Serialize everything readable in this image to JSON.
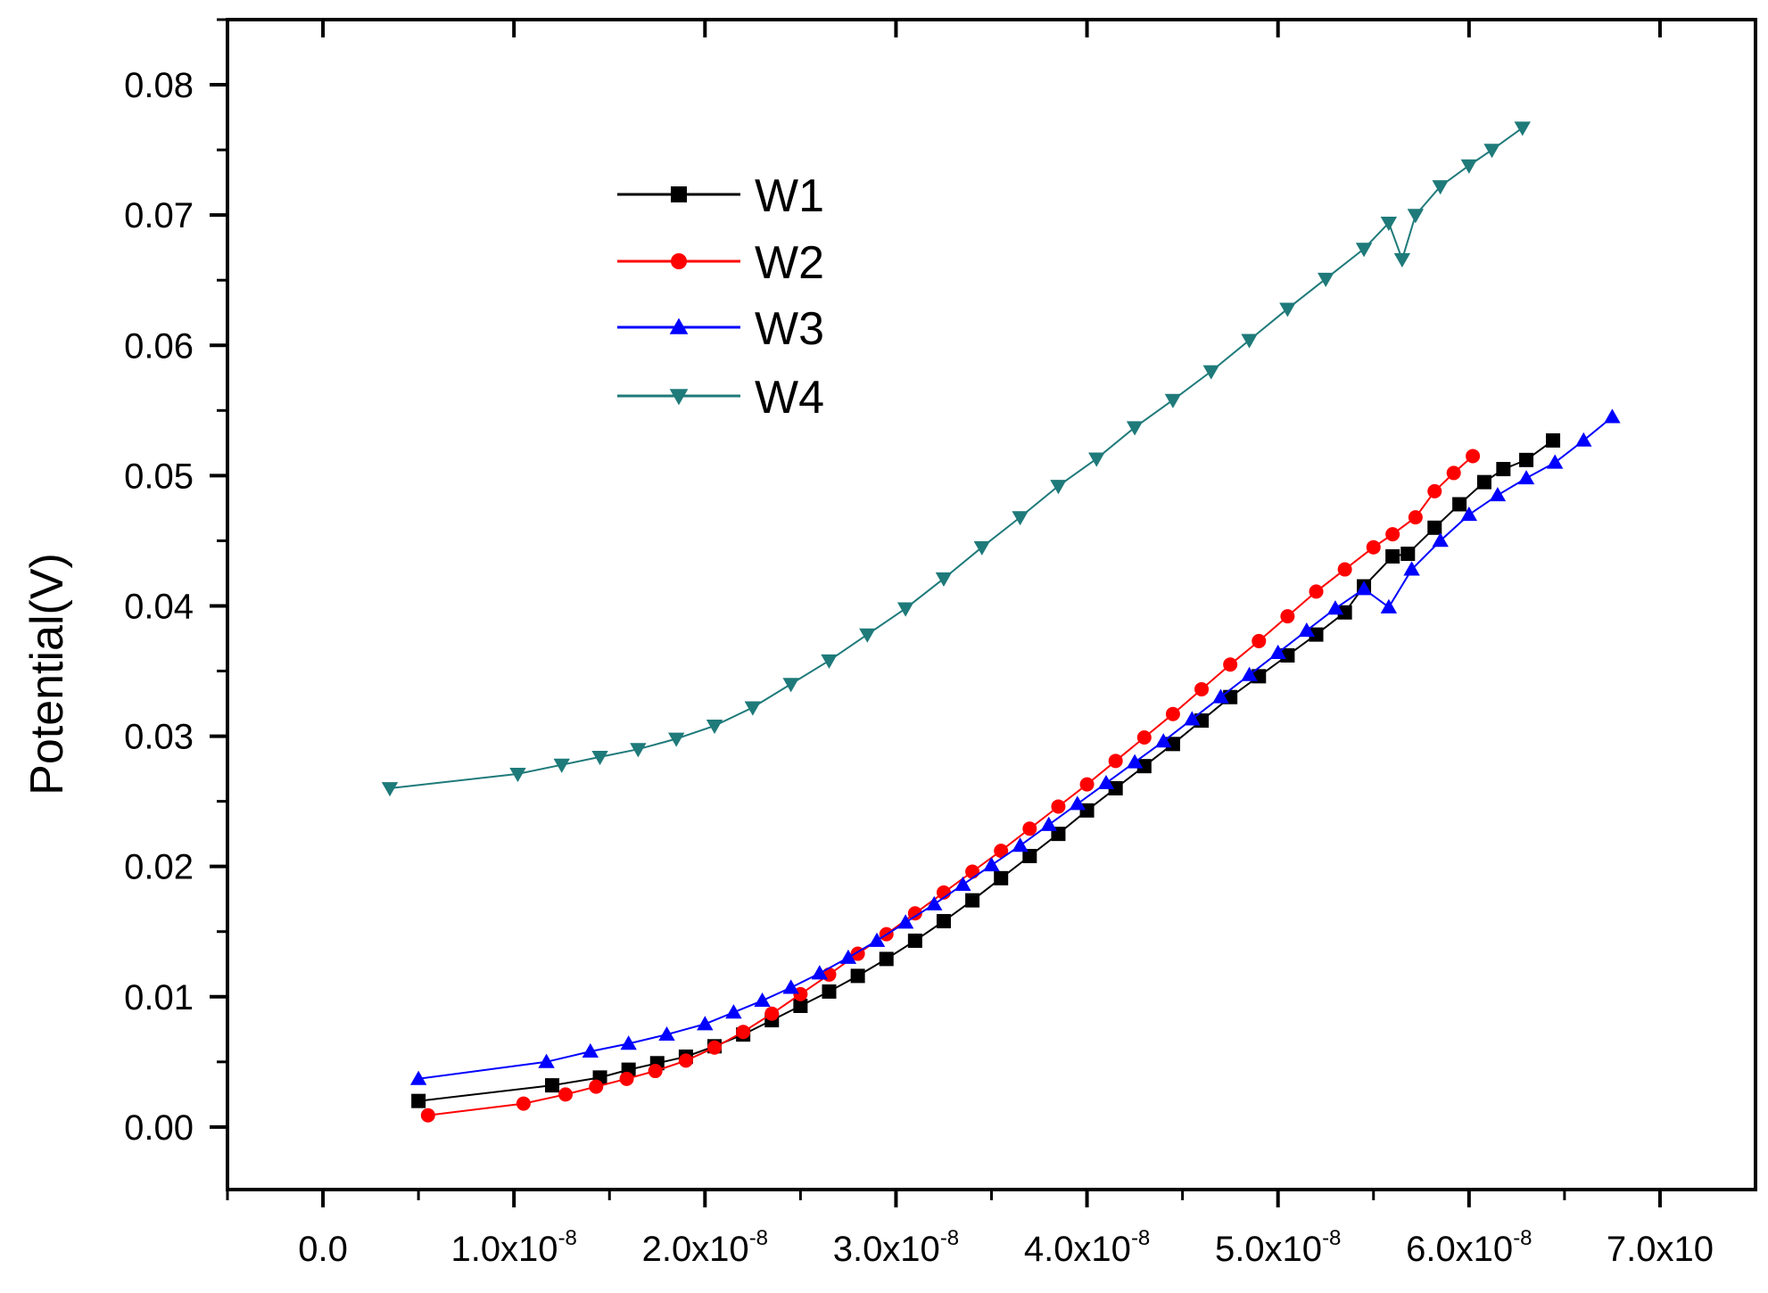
{
  "chart_data": {
    "type": "line",
    "title": "",
    "xlabel": "",
    "ylabel": "Potential(V)",
    "xlim": [
      -5e-09,
      7.5e-08
    ],
    "ylim": [
      -0.0048,
      0.085
    ],
    "grid": false,
    "legend_position": "upper-left",
    "x_tick_labels": [
      {
        "value": 0,
        "mantissa": "0.0",
        "exponent": ""
      },
      {
        "value": 1e-08,
        "mantissa": "1.0x10",
        "exponent": "-8"
      },
      {
        "value": 2e-08,
        "mantissa": "2.0x10",
        "exponent": "-8"
      },
      {
        "value": 3e-08,
        "mantissa": "3.0x10",
        "exponent": "-8"
      },
      {
        "value": 4e-08,
        "mantissa": "4.0x10",
        "exponent": "-8"
      },
      {
        "value": 5e-08,
        "mantissa": "5.0x10",
        "exponent": "-8"
      },
      {
        "value": 6e-08,
        "mantissa": "6.0x10",
        "exponent": "-8"
      },
      {
        "value": 7e-08,
        "mantissa": "7.0x10",
        "exponent": ""
      }
    ],
    "y_tick_labels": [
      {
        "value": 0.0,
        "label": "0.00"
      },
      {
        "value": 0.01,
        "label": "0.01"
      },
      {
        "value": 0.02,
        "label": "0.02"
      },
      {
        "value": 0.03,
        "label": "0.03"
      },
      {
        "value": 0.04,
        "label": "0.04"
      },
      {
        "value": 0.05,
        "label": "0.05"
      },
      {
        "value": 0.06,
        "label": "0.06"
      },
      {
        "value": 0.07,
        "label": "0.07"
      },
      {
        "value": 0.08,
        "label": "0.08"
      }
    ],
    "series": [
      {
        "name": "W1",
        "color": "#000000",
        "marker": "square",
        "x": [
          5e-09,
          1.2e-08,
          1.45e-08,
          1.6e-08,
          1.75e-08,
          1.9e-08,
          2.05e-08,
          2.2e-08,
          2.35e-08,
          2.5e-08,
          2.65e-08,
          2.8e-08,
          2.95e-08,
          3.1e-08,
          3.25e-08,
          3.4e-08,
          3.55e-08,
          3.7e-08,
          3.85e-08,
          4e-08,
          4.15e-08,
          4.3e-08,
          4.45e-08,
          4.6e-08,
          4.75e-08,
          4.9e-08,
          5.05e-08,
          5.2e-08,
          5.35e-08,
          5.45e-08,
          5.6e-08,
          5.68e-08,
          5.82e-08,
          5.95e-08,
          6.08e-08,
          6.18e-08,
          6.3e-08,
          6.44e-08
        ],
        "y": [
          0.002,
          0.0032,
          0.0038,
          0.0044,
          0.0049,
          0.0054,
          0.0062,
          0.0071,
          0.0082,
          0.0093,
          0.0104,
          0.0116,
          0.0129,
          0.0143,
          0.0158,
          0.0174,
          0.0191,
          0.0208,
          0.0225,
          0.0243,
          0.026,
          0.0277,
          0.0294,
          0.0312,
          0.033,
          0.0346,
          0.0362,
          0.0378,
          0.0395,
          0.0415,
          0.0438,
          0.044,
          0.046,
          0.0478,
          0.0495,
          0.0505,
          0.0512,
          0.0527
        ]
      },
      {
        "name": "W2",
        "color": "#ff0000",
        "marker": "circle",
        "x": [
          5.5e-09,
          1.05e-08,
          1.27e-08,
          1.43e-08,
          1.59e-08,
          1.74e-08,
          1.9e-08,
          2.05e-08,
          2.2e-08,
          2.35e-08,
          2.5e-08,
          2.65e-08,
          2.8e-08,
          2.95e-08,
          3.1e-08,
          3.25e-08,
          3.4e-08,
          3.55e-08,
          3.7e-08,
          3.85e-08,
          4e-08,
          4.15e-08,
          4.3e-08,
          4.45e-08,
          4.6e-08,
          4.75e-08,
          4.9e-08,
          5.05e-08,
          5.2e-08,
          5.35e-08,
          5.5e-08,
          5.6e-08,
          5.72e-08,
          5.82e-08,
          5.92e-08,
          6.02e-08
        ],
        "y": [
          0.0009,
          0.0018,
          0.0025,
          0.0031,
          0.0037,
          0.0043,
          0.0051,
          0.0061,
          0.0073,
          0.0087,
          0.0102,
          0.0117,
          0.0133,
          0.0148,
          0.0164,
          0.018,
          0.0196,
          0.0212,
          0.0229,
          0.0246,
          0.0263,
          0.0281,
          0.0299,
          0.0317,
          0.0336,
          0.0355,
          0.0373,
          0.0392,
          0.0411,
          0.0428,
          0.0445,
          0.0455,
          0.0468,
          0.0488,
          0.0502,
          0.0515
        ]
      },
      {
        "name": "W3",
        "color": "#0000ff",
        "marker": "triangle-up",
        "x": [
          5e-09,
          1.17e-08,
          1.4e-08,
          1.6e-08,
          1.8e-08,
          2e-08,
          2.15e-08,
          2.3e-08,
          2.45e-08,
          2.6e-08,
          2.75e-08,
          2.9e-08,
          3.05e-08,
          3.2e-08,
          3.35e-08,
          3.5e-08,
          3.65e-08,
          3.8e-08,
          3.95e-08,
          4.1e-08,
          4.25e-08,
          4.4e-08,
          4.55e-08,
          4.7e-08,
          4.85e-08,
          5e-08,
          5.15e-08,
          5.3e-08,
          5.45e-08,
          5.58e-08,
          5.7e-08,
          5.85e-08,
          6e-08,
          6.15e-08,
          6.3e-08,
          6.45e-08,
          6.6e-08,
          6.75e-08
        ],
        "y": [
          0.0037,
          0.005,
          0.0058,
          0.0064,
          0.0071,
          0.0079,
          0.0088,
          0.0097,
          0.0107,
          0.0118,
          0.013,
          0.0143,
          0.0157,
          0.0171,
          0.0186,
          0.0201,
          0.0216,
          0.0232,
          0.0248,
          0.0264,
          0.028,
          0.0296,
          0.0313,
          0.033,
          0.0347,
          0.0364,
          0.0381,
          0.0398,
          0.0413,
          0.0399,
          0.0428,
          0.045,
          0.047,
          0.0485,
          0.0498,
          0.051,
          0.0527,
          0.0545
        ]
      },
      {
        "name": "W4",
        "color": "#1f7a7a",
        "marker": "triangle-down",
        "x": [
          3.5e-09,
          1.02e-08,
          1.25e-08,
          1.45e-08,
          1.65e-08,
          1.85e-08,
          2.05e-08,
          2.25e-08,
          2.45e-08,
          2.65e-08,
          2.85e-08,
          3.05e-08,
          3.25e-08,
          3.45e-08,
          3.65e-08,
          3.85e-08,
          4.05e-08,
          4.25e-08,
          4.45e-08,
          4.65e-08,
          4.85e-08,
          5.05e-08,
          5.25e-08,
          5.45e-08,
          5.58e-08,
          5.65e-08,
          5.72e-08,
          5.85e-08,
          6e-08,
          6.12e-08,
          6.28e-08
        ],
        "y": [
          0.026,
          0.0271,
          0.0278,
          0.0284,
          0.029,
          0.0298,
          0.0308,
          0.0322,
          0.034,
          0.0358,
          0.0378,
          0.0398,
          0.0421,
          0.0445,
          0.0468,
          0.0492,
          0.0513,
          0.0537,
          0.0558,
          0.058,
          0.0604,
          0.0628,
          0.0651,
          0.0674,
          0.0694,
          0.0666,
          0.07,
          0.0722,
          0.0738,
          0.075,
          0.0767
        ]
      }
    ]
  }
}
